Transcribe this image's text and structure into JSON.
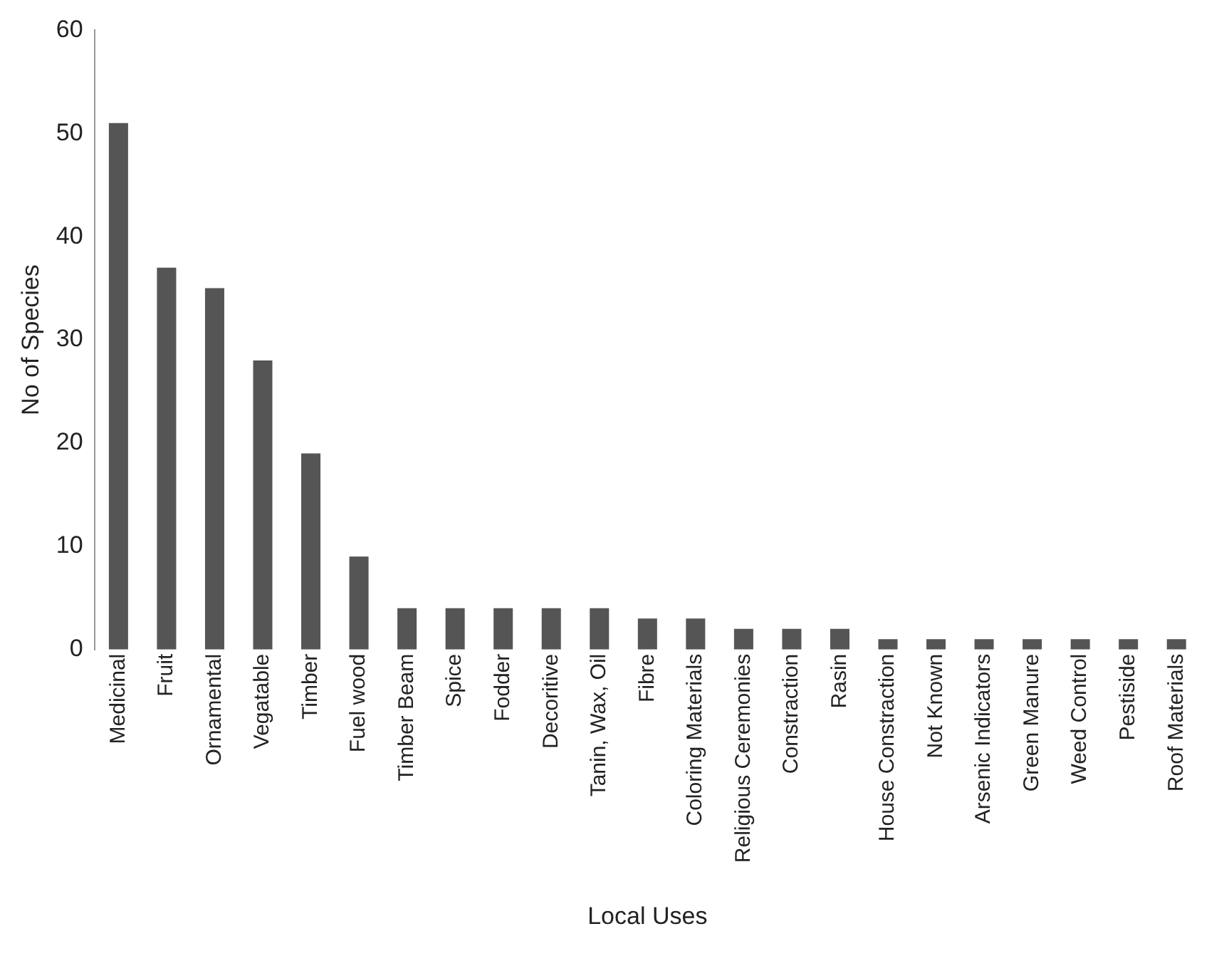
{
  "chart_data": {
    "type": "bar",
    "xlabel": "Local Uses",
    "ylabel": "No of Species",
    "categories": [
      "Medicinal",
      "Fruit",
      "Ornamental",
      "Vegatable",
      "Timber",
      "Fuel wood",
      "Timber Beam",
      "Spice",
      "Fodder",
      "Decoritive",
      "Tanin, Wax, Oil",
      "Fibre",
      "Coloring Materials",
      "Religious Ceremonies",
      "Constraction",
      "Rasin",
      "House Constraction",
      "Not Known",
      "Arsenic Indicators",
      "Green Manure",
      "Weed Control",
      "Pestiside",
      "Roof Materials"
    ],
    "values": [
      51,
      37,
      35,
      28,
      19,
      9,
      4,
      4,
      4,
      4,
      4,
      3,
      3,
      2,
      2,
      2,
      1,
      1,
      1,
      1,
      1,
      1,
      1
    ],
    "color": "#555555",
    "ylim": [
      0,
      60
    ],
    "yticks": [
      0,
      10,
      20,
      30,
      40,
      50,
      60
    ],
    "grid": false,
    "legend": false
  }
}
